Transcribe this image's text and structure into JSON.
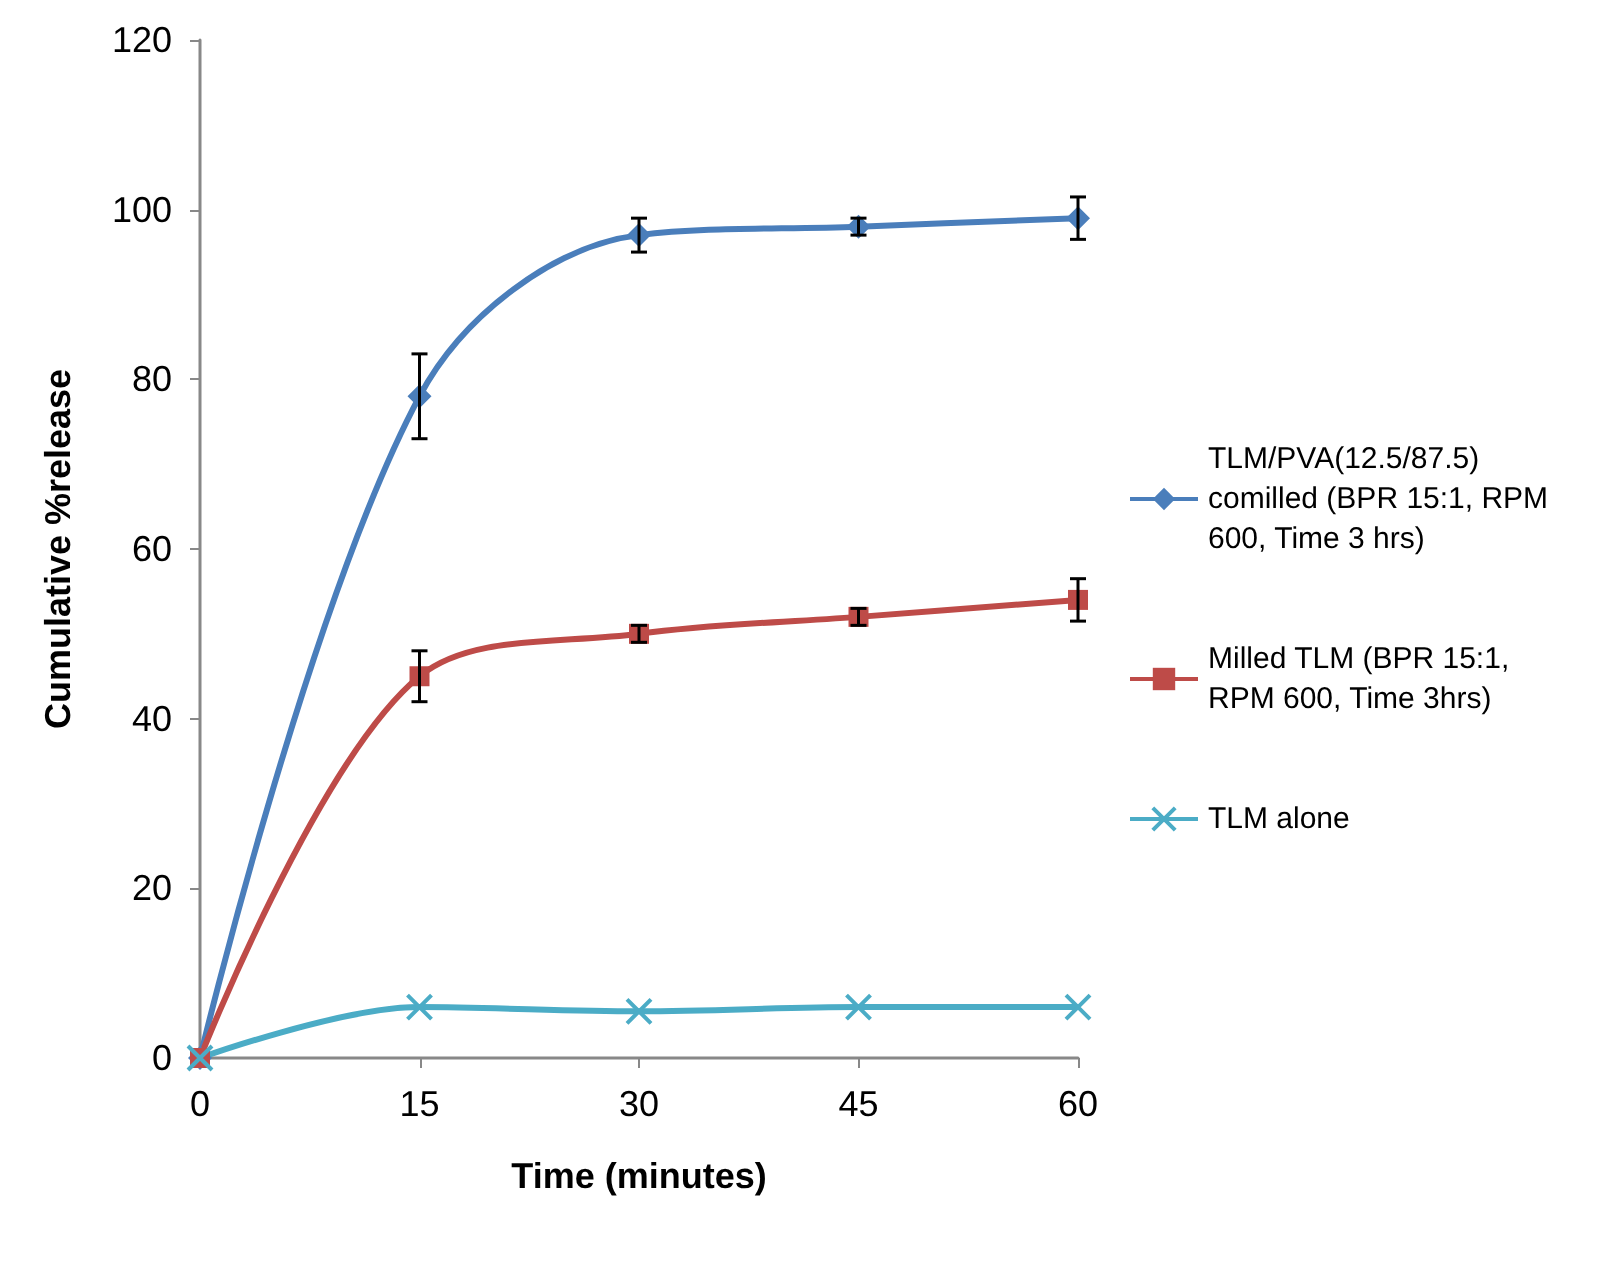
{
  "chart_data": {
    "type": "line",
    "xlabel": "Time (minutes)",
    "ylabel": "Cumulative %release",
    "x": [
      0,
      15,
      30,
      45,
      60
    ],
    "xlim": [
      0,
      60
    ],
    "xticks": [
      0,
      15,
      30,
      45,
      60
    ],
    "ylim": [
      0,
      120
    ],
    "yticks": [
      0,
      20,
      40,
      60,
      80,
      100,
      120
    ],
    "grid": false,
    "legend": "right",
    "line_style": "solid",
    "series": [
      {
        "name": "TLM/PVA(12.5/87.5) comilled (BPR 15:1, RPM 600, Time 3 hrs)",
        "color": "#4a7ebb",
        "marker": "diamond",
        "values": [
          0,
          78,
          97,
          98,
          99
        ],
        "errors": [
          null,
          5,
          2,
          1,
          2.5
        ]
      },
      {
        "name": "Milled TLM (BPR 15:1, RPM 600, Time 3hrs)",
        "color": "#be4b48",
        "marker": "square",
        "values": [
          0,
          45,
          50,
          52,
          54
        ],
        "errors": [
          null,
          3,
          1,
          1,
          2.5
        ]
      },
      {
        "name": "TLM alone",
        "color": "#4bacc6",
        "marker": "cross",
        "values": [
          0,
          6,
          5.5,
          6,
          6
        ]
      }
    ]
  }
}
